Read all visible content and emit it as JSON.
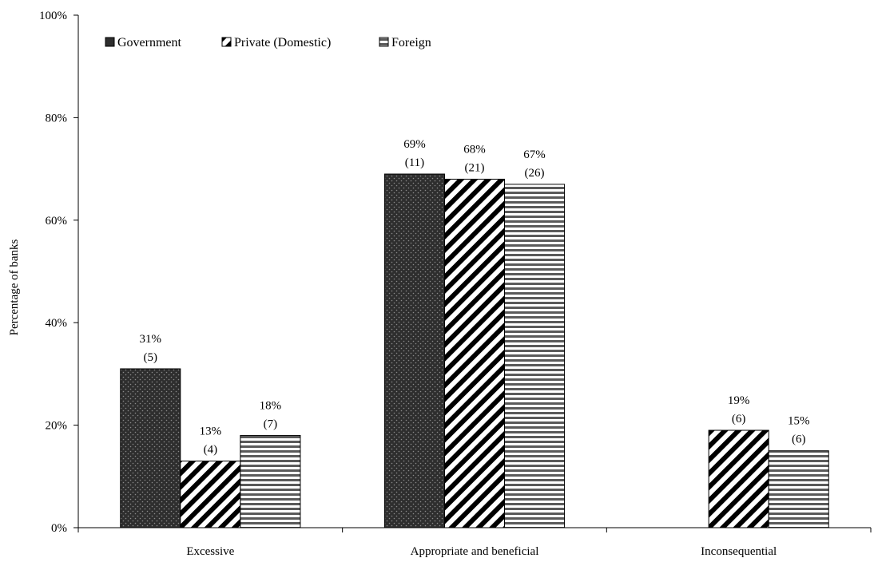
{
  "chart_data": {
    "type": "bar",
    "categories": [
      "Excessive",
      "Appropriate and beneficial",
      "Inconsequential"
    ],
    "series": [
      {
        "name": "Government",
        "values": [
          31,
          69,
          null
        ],
        "labels": [
          [
            "31%",
            "(5)"
          ],
          [
            "69%",
            "(11)"
          ],
          null
        ]
      },
      {
        "name": "Private (Domestic)",
        "values": [
          13,
          68,
          19
        ],
        "labels": [
          [
            "13%",
            "(4)"
          ],
          [
            "68%",
            "(21)"
          ],
          [
            "19%",
            "(6)"
          ]
        ]
      },
      {
        "name": "Foreign",
        "values": [
          18,
          67,
          15
        ],
        "labels": [
          [
            "18%",
            "(7)"
          ],
          [
            "67%",
            "(26)"
          ],
          [
            "15%",
            "(6)"
          ]
        ]
      }
    ],
    "ylabel": "Percentage of banks",
    "xlabel": "",
    "ylim": [
      0,
      100
    ],
    "yticks": [
      0,
      20,
      40,
      60,
      80,
      100
    ],
    "ytick_labels": [
      "0%",
      "20%",
      "40%",
      "60%",
      "80%",
      "100%"
    ],
    "legend_position": "top-left",
    "grid": false
  }
}
